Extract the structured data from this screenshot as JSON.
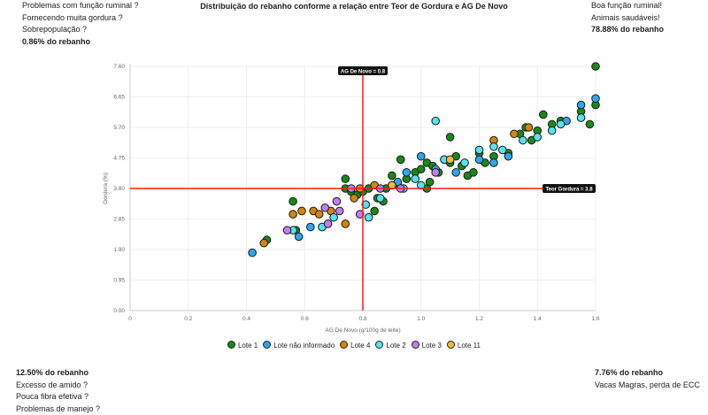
{
  "corners": {
    "top_left": [
      "Problemas com função ruminal ?",
      "Fornecendo muita gordura ?",
      "Sobrepopulação ?",
      "0.86% do rebanho"
    ],
    "top_right": [
      "Boa função ruminal!",
      "Animais saudáveis!",
      "78.88% do rebanho"
    ],
    "bottom_left": [
      "12.50% do rebanho",
      "Excesso de amido ?",
      "Pouca fibra efetiva ?",
      "Problemas de manejo ?"
    ],
    "bottom_right": [
      "7.76% do rebanho",
      "Vacas Magras, perda de ECC"
    ]
  },
  "chart_data": {
    "type": "scatter",
    "title": "Distribuição do rebanho conforme a relação entre Teor de Gordura e AG De Novo",
    "xlabel": "AG De Novo (g/100g de leite)",
    "ylabel": "Gordura (%)",
    "xlim": [
      0,
      1.6
    ],
    "ylim": [
      0,
      7.6
    ],
    "xticks": [
      "0",
      "0.2",
      "0.4",
      "0.6",
      "0.8",
      "1.0",
      "1.2",
      "1.4",
      "1.6"
    ],
    "yticks": [
      "0.00",
      "0.95",
      "1.90",
      "2.85",
      "3.80",
      "4.75",
      "5.70",
      "6.65",
      "7.60"
    ],
    "grid": true,
    "legend_position": "bottom",
    "reference_lines": {
      "x": 0.8,
      "x_label": "AG De Novo = 0.8",
      "y": 3.8,
      "y_label": "Teor Gordura = 3.8"
    },
    "series": [
      {
        "name": "Lote 1",
        "color": "#178a17",
        "points": [
          [
            0.56,
            3.4
          ],
          [
            0.57,
            2.5
          ],
          [
            0.47,
            2.2
          ],
          [
            0.74,
            4.1
          ],
          [
            0.74,
            3.8
          ],
          [
            0.76,
            3.7
          ],
          [
            0.78,
            3.6
          ],
          [
            0.8,
            3.7
          ],
          [
            0.82,
            3.8
          ],
          [
            0.85,
            3.5
          ],
          [
            0.87,
            3.4
          ],
          [
            0.88,
            3.8
          ],
          [
            0.9,
            4.2
          ],
          [
            0.92,
            3.9
          ],
          [
            0.93,
            4.7
          ],
          [
            0.95,
            4.1
          ],
          [
            0.98,
            4.3
          ],
          [
            1.0,
            4.4
          ],
          [
            1.02,
            3.8
          ],
          [
            1.02,
            4.6
          ],
          [
            1.04,
            4.5
          ],
          [
            1.06,
            4.3
          ],
          [
            1.08,
            4.7
          ],
          [
            1.1,
            4.6
          ],
          [
            1.12,
            4.8
          ],
          [
            1.14,
            4.5
          ],
          [
            1.16,
            4.2
          ],
          [
            1.18,
            4.3
          ],
          [
            1.1,
            5.4
          ],
          [
            1.2,
            4.9
          ],
          [
            1.22,
            4.6
          ],
          [
            1.25,
            4.8
          ],
          [
            1.3,
            4.9
          ],
          [
            1.34,
            5.5
          ],
          [
            1.36,
            5.7
          ],
          [
            1.38,
            5.3
          ],
          [
            1.4,
            5.6
          ],
          [
            1.42,
            6.1
          ],
          [
            1.45,
            5.8
          ],
          [
            1.48,
            5.9
          ],
          [
            1.55,
            6.2
          ],
          [
            1.58,
            5.8
          ],
          [
            1.6,
            6.4
          ],
          [
            1.6,
            7.6
          ],
          [
            1.03,
            4.0
          ],
          [
            0.84,
            3.1
          ]
        ]
      },
      {
        "name": "Lote não informado",
        "color": "#2aa8f0",
        "points": [
          [
            0.42,
            1.8
          ],
          [
            0.58,
            2.3
          ],
          [
            0.62,
            2.6
          ],
          [
            0.92,
            4.0
          ],
          [
            0.95,
            4.3
          ],
          [
            1.0,
            4.8
          ],
          [
            1.05,
            4.4
          ],
          [
            1.12,
            4.3
          ],
          [
            1.2,
            4.7
          ],
          [
            1.25,
            4.6
          ],
          [
            1.55,
            6.4
          ],
          [
            1.6,
            6.6
          ],
          [
            1.5,
            5.9
          ],
          [
            1.3,
            4.8
          ]
        ]
      },
      {
        "name": "Lote 4",
        "color": "#d4850a",
        "points": [
          [
            0.46,
            2.1
          ],
          [
            0.56,
            3.0
          ],
          [
            0.59,
            3.1
          ],
          [
            0.63,
            3.1
          ],
          [
            0.65,
            3.0
          ],
          [
            0.69,
            3.1
          ],
          [
            0.74,
            2.7
          ],
          [
            0.77,
            3.5
          ],
          [
            0.79,
            3.8
          ],
          [
            0.84,
            3.9
          ],
          [
            1.25,
            5.3
          ],
          [
            1.37,
            5.7
          ],
          [
            1.32,
            5.5
          ]
        ]
      },
      {
        "name": "Lote 2",
        "color": "#55e3ee",
        "points": [
          [
            0.56,
            2.5
          ],
          [
            0.66,
            2.6
          ],
          [
            0.7,
            2.9
          ],
          [
            0.81,
            3.3
          ],
          [
            0.82,
            2.9
          ],
          [
            0.86,
            3.5
          ],
          [
            0.94,
            3.8
          ],
          [
            1.05,
            5.9
          ],
          [
            1.08,
            4.7
          ],
          [
            1.15,
            4.6
          ],
          [
            1.2,
            5.0
          ],
          [
            1.25,
            5.1
          ],
          [
            1.28,
            5.0
          ],
          [
            1.35,
            5.3
          ],
          [
            1.4,
            5.4
          ],
          [
            1.45,
            5.6
          ],
          [
            1.48,
            5.8
          ],
          [
            1.55,
            6.0
          ],
          [
            0.98,
            4.1
          ],
          [
            1.0,
            3.9
          ]
        ]
      },
      {
        "name": "Lote 3",
        "color": "#c07ef0",
        "points": [
          [
            0.54,
            2.5
          ],
          [
            0.67,
            3.2
          ],
          [
            0.68,
            2.7
          ],
          [
            0.71,
            3.4
          ],
          [
            0.72,
            3.1
          ],
          [
            0.76,
            3.8
          ],
          [
            0.79,
            3.0
          ],
          [
            0.86,
            3.8
          ],
          [
            0.93,
            3.8
          ],
          [
            1.05,
            4.3
          ],
          [
            0.9,
            3.9
          ]
        ]
      },
      {
        "name": "Lote 11",
        "color": "#f5b82e",
        "points": [
          [
            0.9,
            3.9
          ],
          [
            1.1,
            4.7
          ]
        ]
      }
    ]
  }
}
